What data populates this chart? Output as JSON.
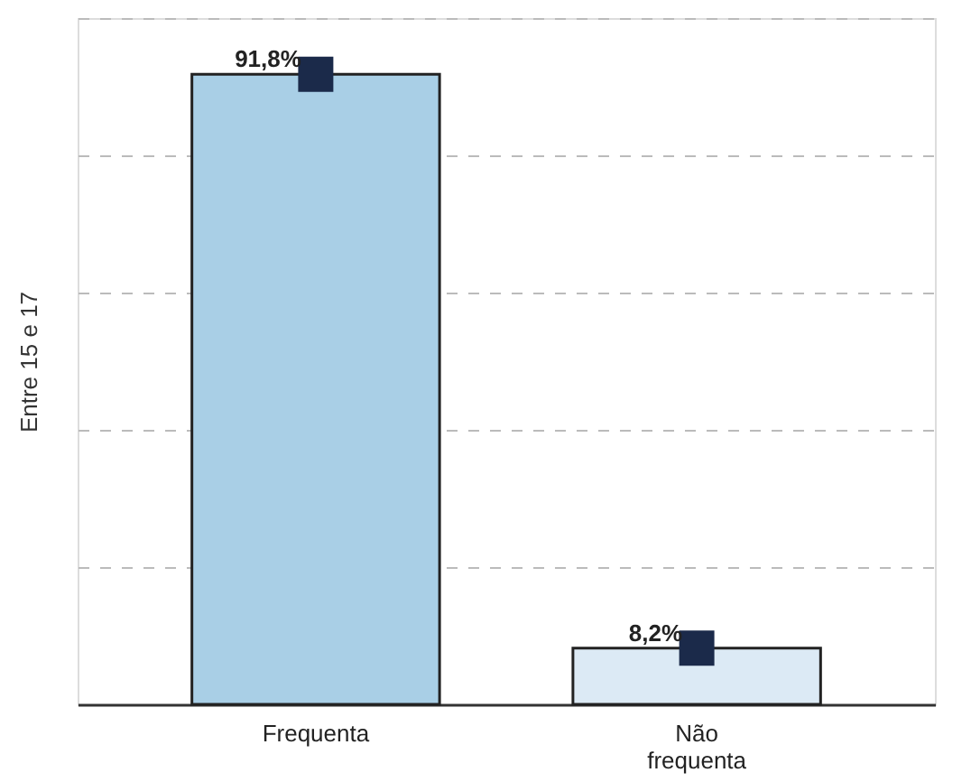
{
  "chart_data": {
    "type": "bar",
    "ylabel": "Entre 15 e 17",
    "categories": [
      "Frequenta",
      "Não frequenta"
    ],
    "series": [
      {
        "values": [
          91.8,
          8.2
        ],
        "colors": [
          "#a9cfe6",
          "#dceaf5"
        ]
      },
      {
        "type": "scatter",
        "x": [
          "Frequenta",
          "Não frequenta"
        ],
        "values": [
          91.8,
          8.2
        ],
        "value_labels": [
          "91,8%",
          "8,2%"
        ],
        "color": "#1b2a4a",
        "marker": "square"
      }
    ],
    "tick_labels": "x",
    "grid": "y"
  }
}
